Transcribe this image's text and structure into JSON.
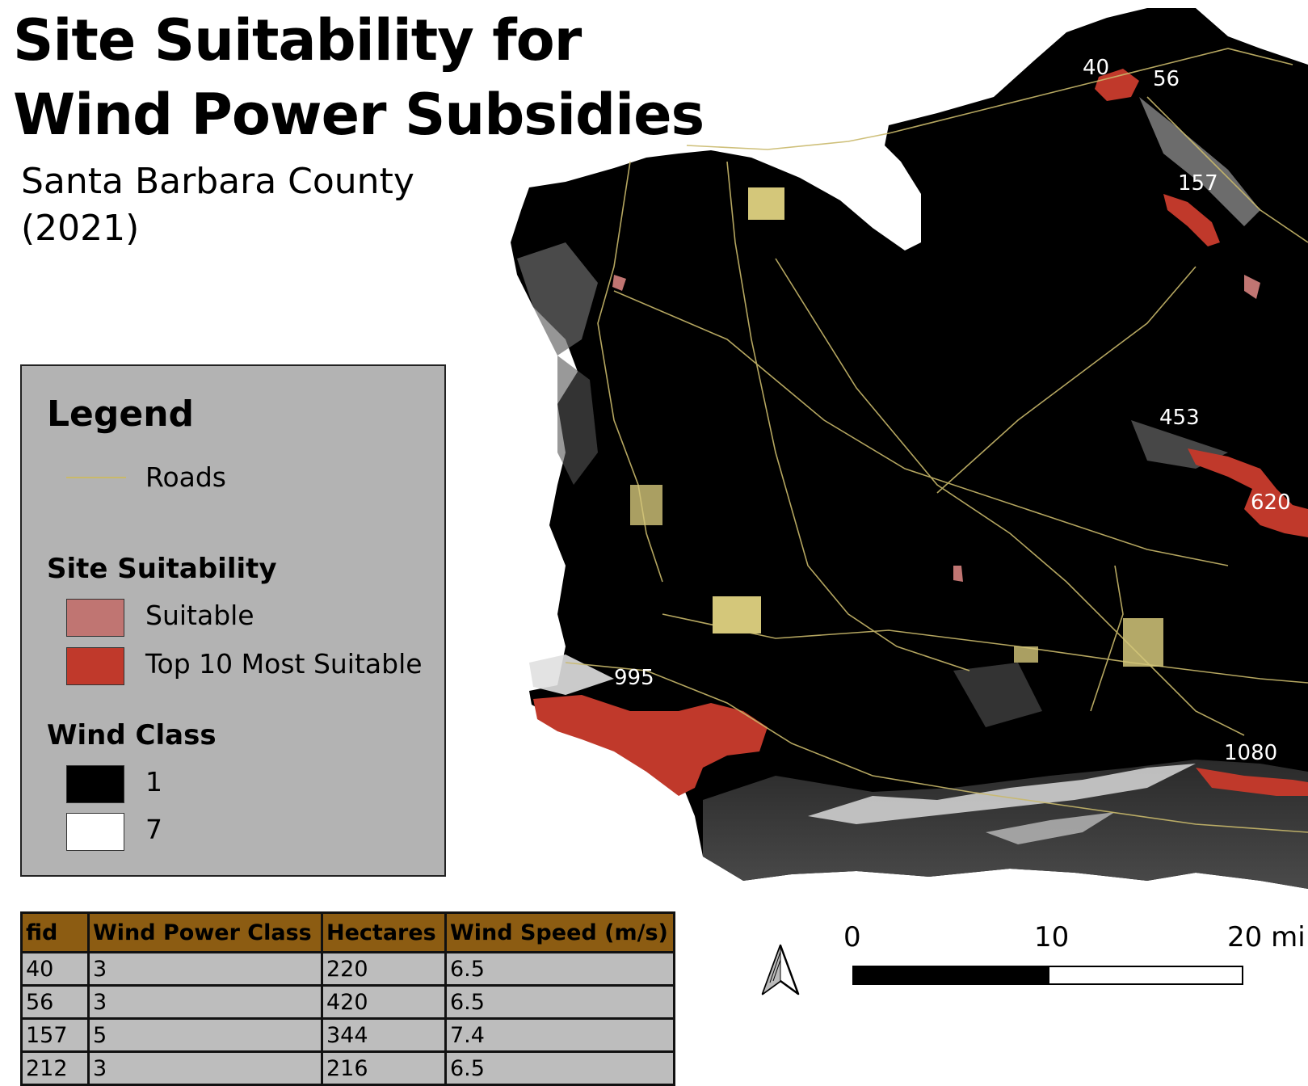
{
  "title": {
    "line1": "Site Suitability for",
    "line2": "Wind Power Subsidies"
  },
  "subtitle": {
    "line1": "Santa Barbara County",
    "line2": "(2021)"
  },
  "legend": {
    "title": "Legend",
    "roads_label": "Roads",
    "suitability_heading": "Site Suitability",
    "suitable_label": "Suitable",
    "top10_label": "Top 10 Most Suitable",
    "wind_class_heading": "Wind Class",
    "wind_class_min": "1",
    "wind_class_max": "7"
  },
  "colors": {
    "roads": "#c9b96b",
    "suitable": "#c07572",
    "top10": "#c0392b",
    "wind_low": "#000000",
    "wind_high": "#ffffff",
    "table_header": "#8c5c12",
    "table_cell": "#bdbdbd",
    "legend_bg": "#b3b3b3"
  },
  "site_labels": [
    "40",
    "56",
    "157",
    "453",
    "620",
    "995",
    "1080"
  ],
  "table": {
    "headers": [
      "fid",
      "Wind Power Class",
      "Hectares",
      "Wind Speed (m/s)"
    ],
    "rows": [
      [
        "40",
        "3",
        "220",
        "6.5"
      ],
      [
        "56",
        "3",
        "420",
        "6.5"
      ],
      [
        "157",
        "5",
        "344",
        "7.4"
      ],
      [
        "212",
        "3",
        "216",
        "6.5"
      ]
    ]
  },
  "scale_bar": {
    "labels": [
      "0",
      "10",
      "20 mi"
    ]
  },
  "north_arrow": {
    "icon": "north-arrow-icon"
  }
}
